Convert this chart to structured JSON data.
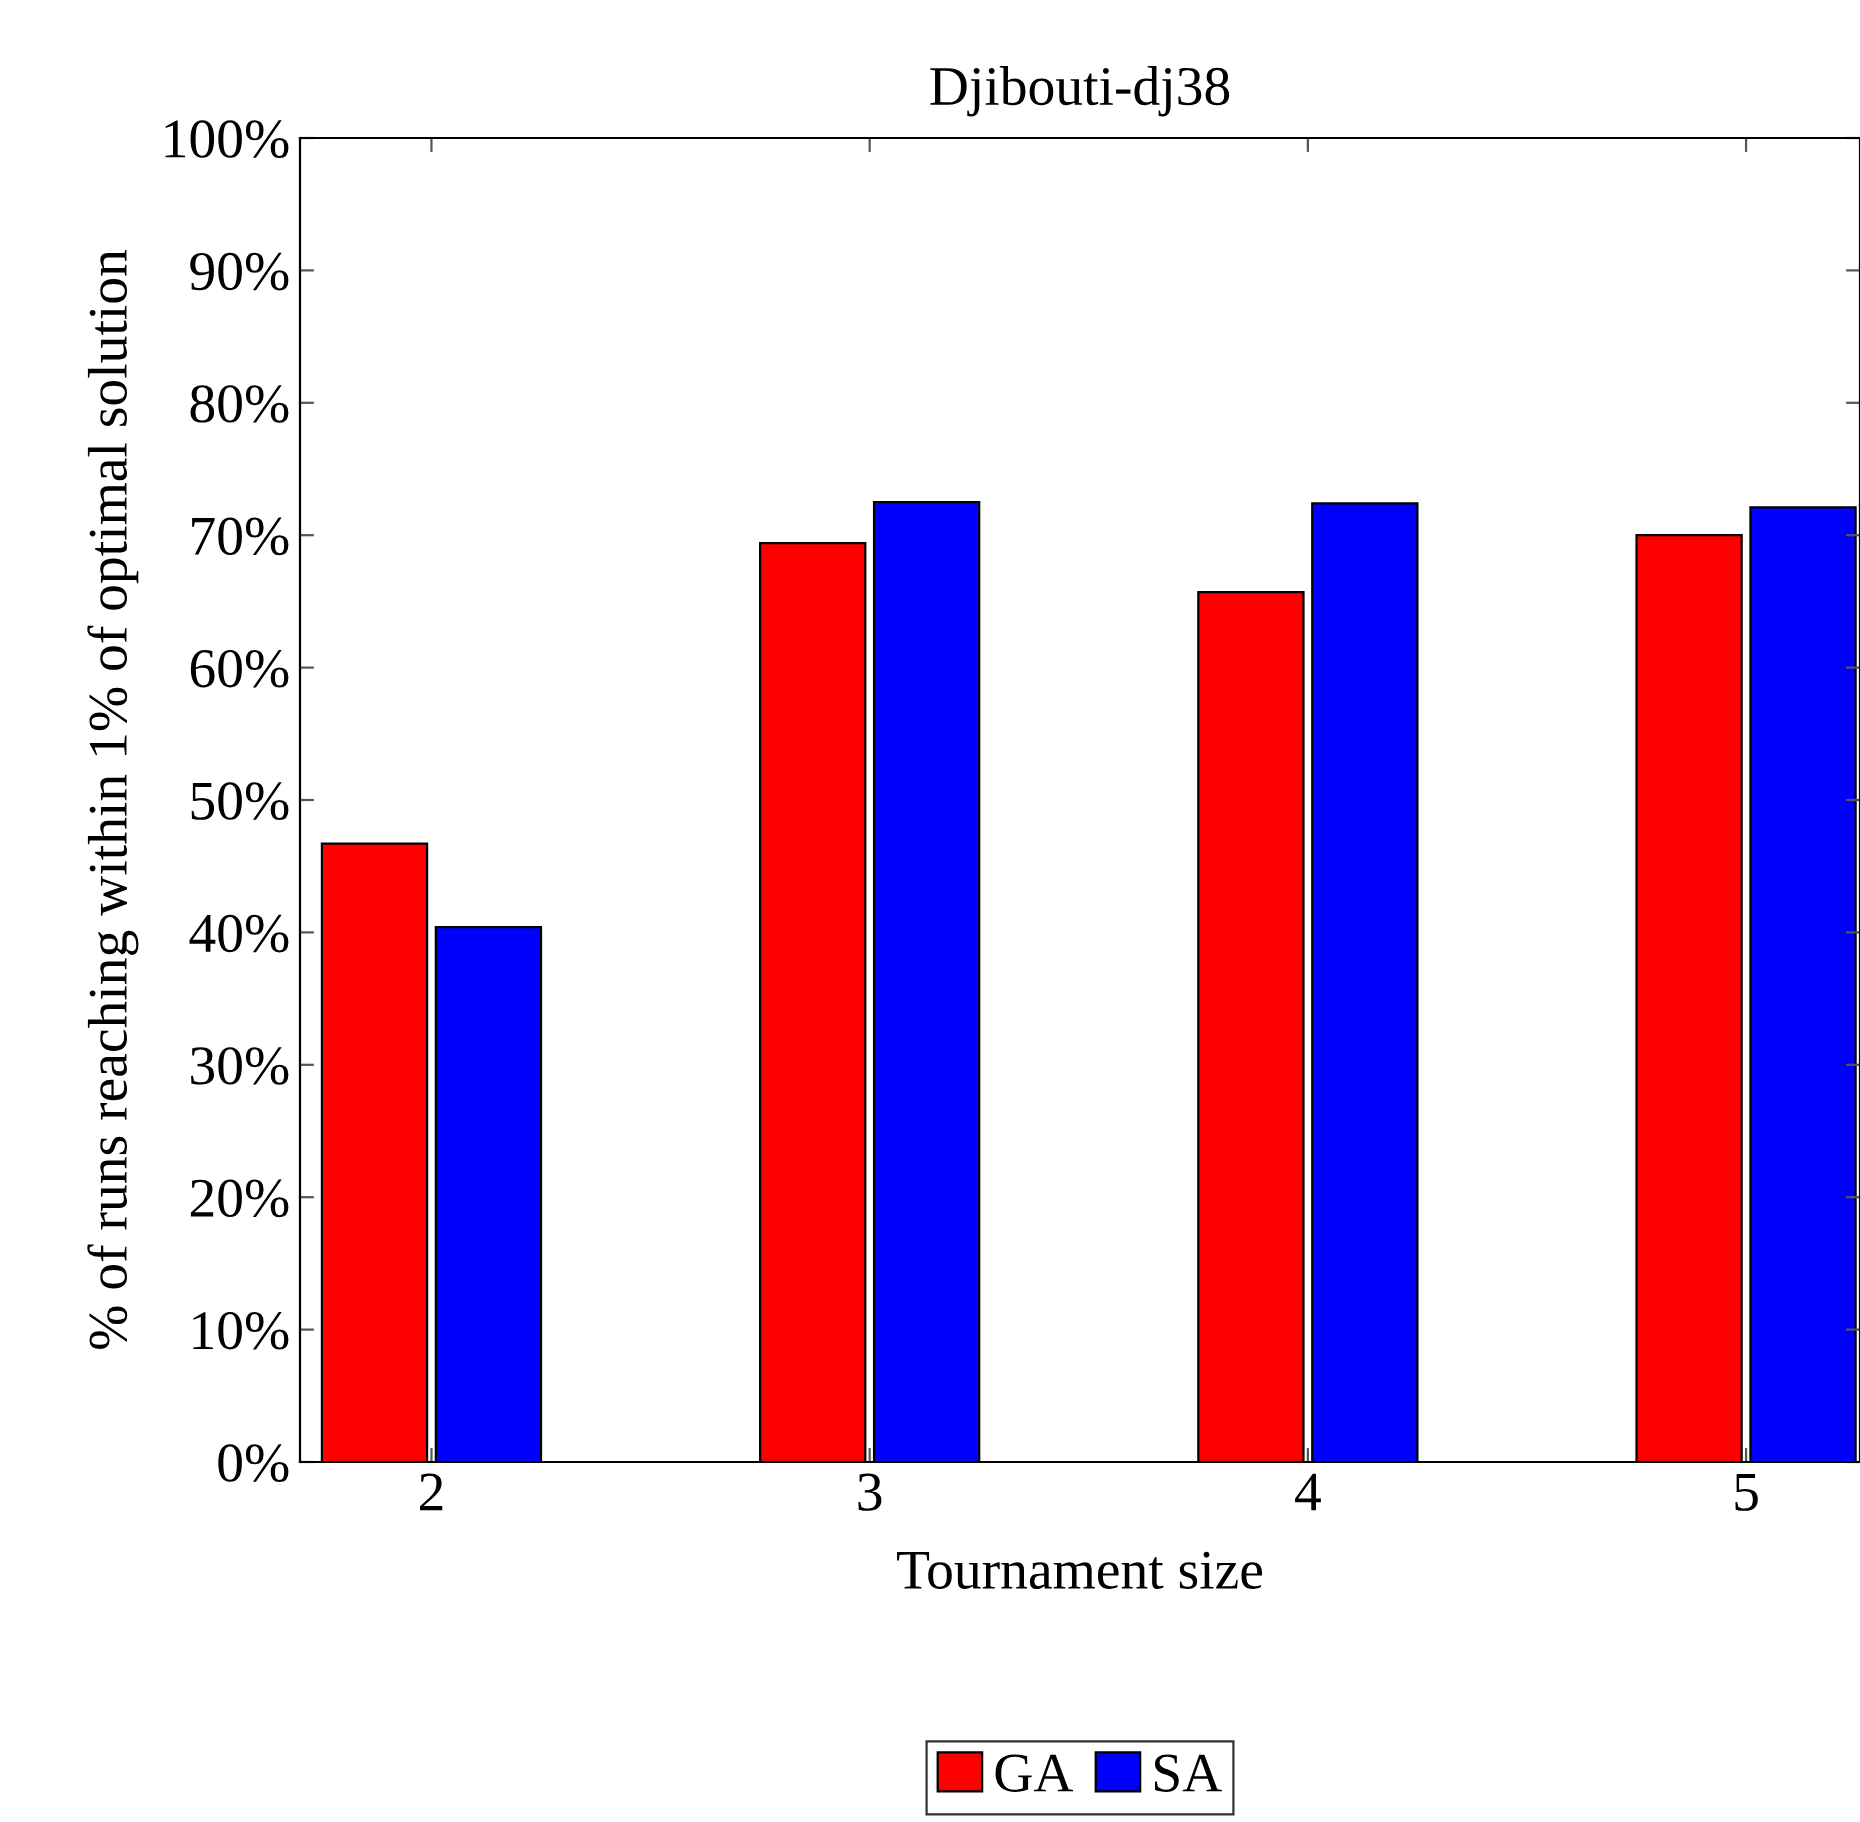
{
  "chart_data": {
    "type": "bar",
    "title": "Djibouti-dj38",
    "xlabel": "Tournament size",
    "ylabel": "% of runs reaching within 1% of optimal solution",
    "categories": [
      "2",
      "3",
      "4",
      "5"
    ],
    "series": [
      {
        "name": "GA",
        "color": "#ff0000",
        "values": [
          46.7,
          69.4,
          65.7,
          70.0
        ]
      },
      {
        "name": "SA",
        "color": "#0000ff",
        "values": [
          40.4,
          72.5,
          72.4,
          72.1
        ]
      }
    ],
    "ylim": [
      0,
      100
    ],
    "yticks": [
      {
        "value": 0,
        "label": "0%"
      },
      {
        "value": 10,
        "label": "10%"
      },
      {
        "value": 20,
        "label": "20%"
      },
      {
        "value": 30,
        "label": "30%"
      },
      {
        "value": 40,
        "label": "40%"
      },
      {
        "value": 50,
        "label": "50%"
      },
      {
        "value": 60,
        "label": "60%"
      },
      {
        "value": 70,
        "label": "70%"
      },
      {
        "value": 80,
        "label": "80%"
      },
      {
        "value": 90,
        "label": "90%"
      },
      {
        "value": 100,
        "label": "100%"
      }
    ],
    "legend": "bottom",
    "grid": false
  }
}
